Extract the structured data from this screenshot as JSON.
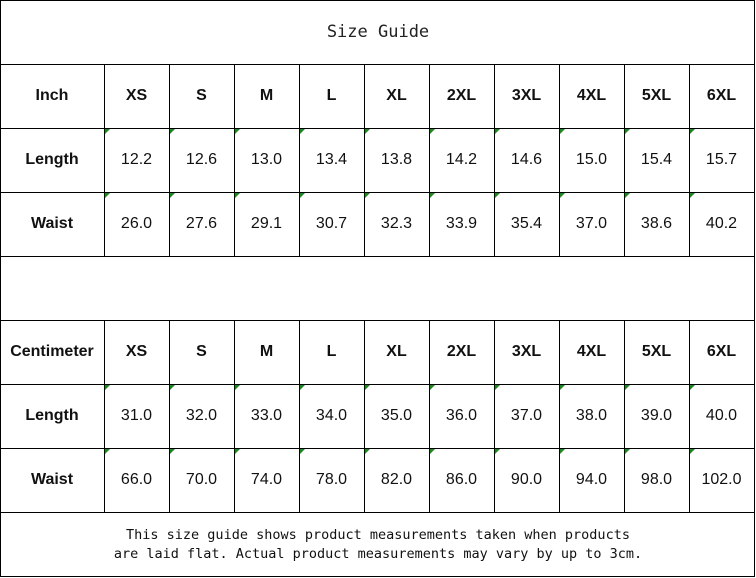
{
  "title": "Size Guide",
  "sizes": [
    "XS",
    "S",
    "M",
    "L",
    "XL",
    "2XL",
    "3XL",
    "4XL",
    "5XL",
    "6XL"
  ],
  "tables": [
    {
      "unit": "Inch",
      "rows": [
        {
          "label": "Length",
          "values": [
            "12.2",
            "12.6",
            "13.0",
            "13.4",
            "13.8",
            "14.2",
            "14.6",
            "15.0",
            "15.4",
            "15.7"
          ]
        },
        {
          "label": "Waist",
          "values": [
            "26.0",
            "27.6",
            "29.1",
            "30.7",
            "32.3",
            "33.9",
            "35.4",
            "37.0",
            "38.6",
            "40.2"
          ]
        }
      ]
    },
    {
      "unit": "Centimeter",
      "rows": [
        {
          "label": "Length",
          "values": [
            "31.0",
            "32.0",
            "33.0",
            "34.0",
            "35.0",
            "36.0",
            "37.0",
            "38.0",
            "39.0",
            "40.0"
          ]
        },
        {
          "label": "Waist",
          "values": [
            "66.0",
            "70.0",
            "74.0",
            "78.0",
            "82.0",
            "86.0",
            "90.0",
            "94.0",
            "98.0",
            "102.0"
          ]
        }
      ]
    }
  ],
  "note": {
    "line1": "This size guide shows product measurements taken when products",
    "line2": "are laid flat. Actual product measurements may vary by up to 3cm."
  },
  "colors": {
    "error_indicator": "#1a8a1a",
    "grid": "#000000"
  }
}
